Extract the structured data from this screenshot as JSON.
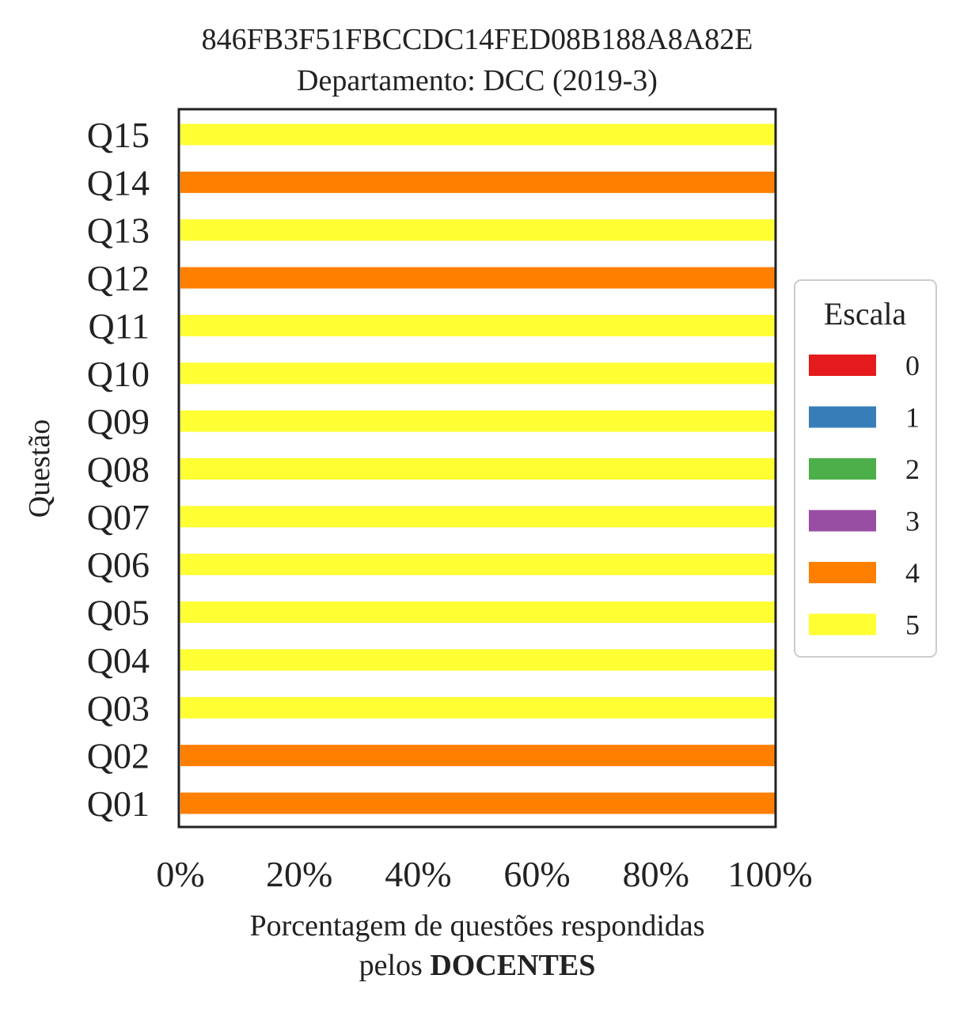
{
  "chart_data": {
    "type": "bar",
    "orientation": "horizontal",
    "stacked": true,
    "title": [
      "846FB3F51FBCCDC14FED08B188A8A82E",
      "Departamento: DCC (2019-3)"
    ],
    "ylabel": "Questão",
    "xlabel_line1": "Porcentagem de questões respondidas",
    "xlabel_line2_prefix": "pelos ",
    "xlabel_line2_bold": "DOCENTES",
    "categories": [
      "Q01",
      "Q02",
      "Q03",
      "Q04",
      "Q05",
      "Q06",
      "Q07",
      "Q08",
      "Q09",
      "Q10",
      "Q11",
      "Q12",
      "Q13",
      "Q14",
      "Q15"
    ],
    "x_ticks": [
      "0%",
      "20%",
      "40%",
      "60%",
      "80%",
      "100%"
    ],
    "xlim": [
      0,
      100
    ],
    "legend": {
      "title": "Escala",
      "placement": "right"
    },
    "series": [
      {
        "name": "0",
        "color": "#e41a1c",
        "values": [
          0,
          0,
          0,
          0,
          0,
          0,
          0,
          0,
          0,
          0,
          0,
          0,
          0,
          0,
          0
        ]
      },
      {
        "name": "1",
        "color": "#377eb8",
        "values": [
          0,
          0,
          0,
          0,
          0,
          0,
          0,
          0,
          0,
          0,
          0,
          0,
          0,
          0,
          0
        ]
      },
      {
        "name": "2",
        "color": "#4daf4a",
        "values": [
          0,
          0,
          0,
          0,
          0,
          0,
          0,
          0,
          0,
          0,
          0,
          0,
          0,
          0,
          0
        ]
      },
      {
        "name": "3",
        "color": "#984ea3",
        "values": [
          0,
          0,
          0,
          0,
          0,
          0,
          0,
          0,
          0,
          0,
          0,
          0,
          0,
          0,
          0
        ]
      },
      {
        "name": "4",
        "color": "#ff7f00",
        "values": [
          100,
          100,
          0,
          0,
          0,
          0,
          0,
          0,
          0,
          0,
          0,
          100,
          0,
          100,
          0
        ]
      },
      {
        "name": "5",
        "color": "#ffff33",
        "values": [
          0,
          0,
          100,
          100,
          100,
          100,
          100,
          100,
          100,
          100,
          100,
          0,
          100,
          0,
          100
        ]
      }
    ]
  }
}
